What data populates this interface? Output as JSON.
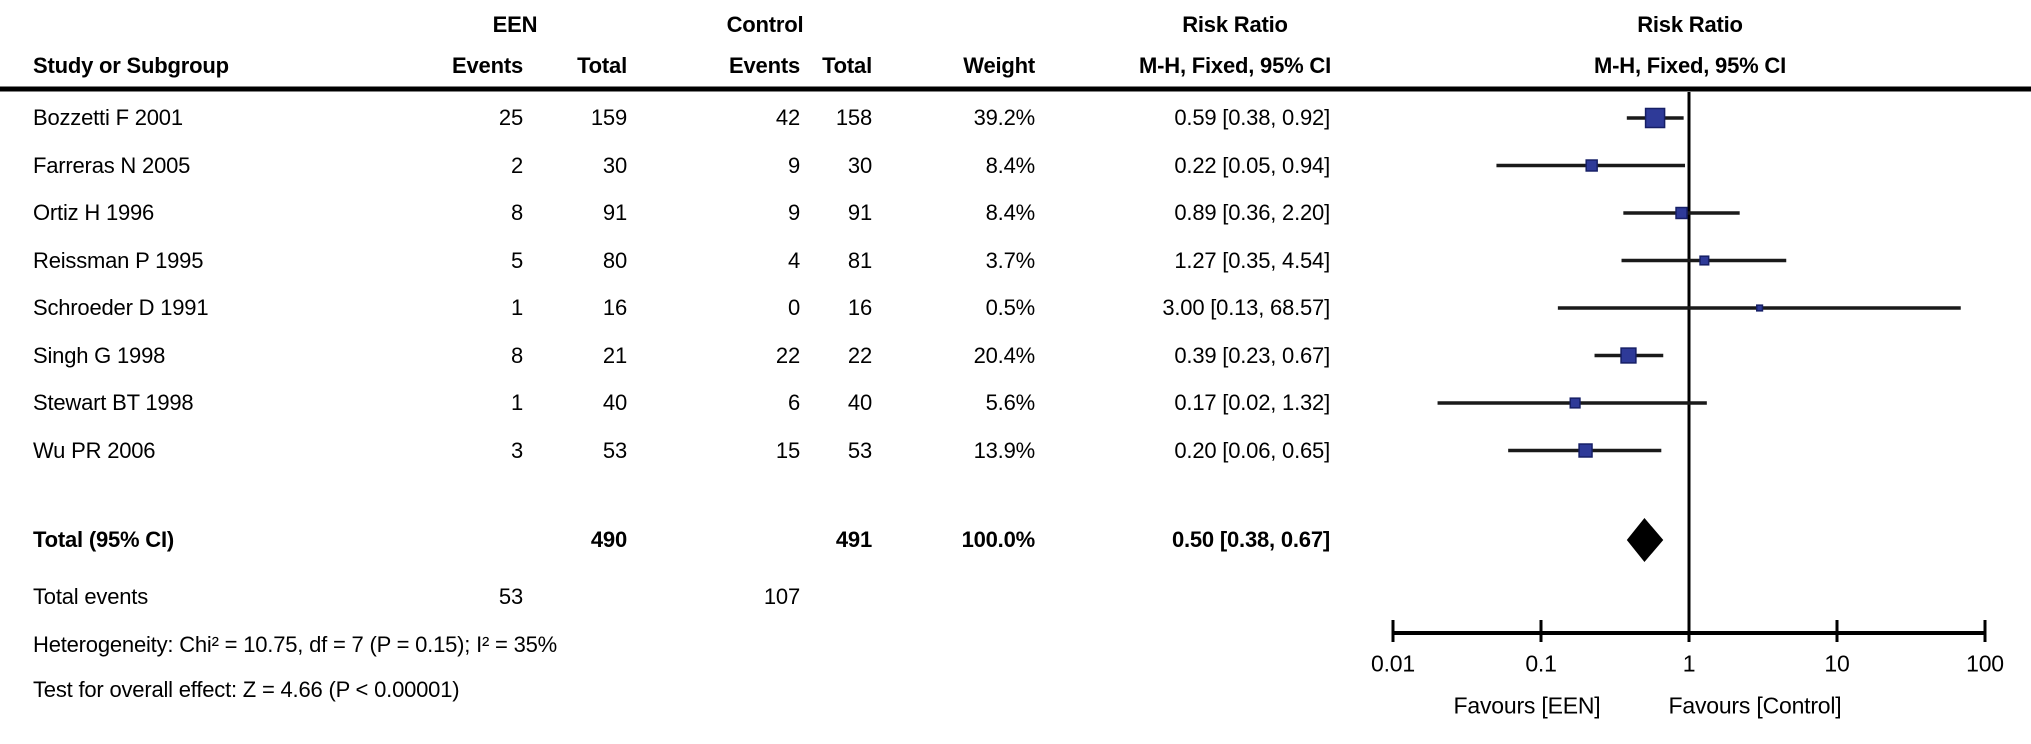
{
  "header": {
    "een_group": "EEN",
    "control_group": "Control",
    "risk_ratio_left": "Risk Ratio",
    "risk_ratio_right": "Risk Ratio",
    "study": "Study or Subgroup",
    "een_events": "Events",
    "een_total": "Total",
    "control_events": "Events",
    "control_total": "Total",
    "weight": "Weight",
    "mh_fixed_left": "M-H, Fixed, 95% CI",
    "mh_fixed_right": "M-H, Fixed, 95% CI"
  },
  "colors": {
    "marker": "#2E3A98",
    "marker_border": "#161F66",
    "line": "#1A1A1A",
    "axis": "#000000",
    "diamond": "#000000"
  },
  "chart_data": {
    "type": "forest",
    "effect_measure": "Risk Ratio",
    "method": "M-H, Fixed, 95% CI",
    "xscale": "log",
    "xticks": [
      0.01,
      0.1,
      1,
      10,
      100
    ],
    "xtick_labels": [
      "0.01",
      "0.1",
      "1",
      "10",
      "100"
    ],
    "xlabel_left": "Favours [EEN]",
    "xlabel_right": "Favours [Control]",
    "studies": [
      {
        "name": "Bozzetti F 2001",
        "een_events": 25,
        "een_total": 159,
        "ctrl_events": 42,
        "ctrl_total": 158,
        "weight": "39.2%",
        "weight_pct": 39.2,
        "ci_text": "0.59 [0.38, 0.92]",
        "rr": 0.59,
        "lo": 0.38,
        "hi": 0.92
      },
      {
        "name": "Farreras N 2005",
        "een_events": 2,
        "een_total": 30,
        "ctrl_events": 9,
        "ctrl_total": 30,
        "weight": "8.4%",
        "weight_pct": 8.4,
        "ci_text": "0.22 [0.05, 0.94]",
        "rr": 0.22,
        "lo": 0.05,
        "hi": 0.94
      },
      {
        "name": "Ortiz H 1996",
        "een_events": 8,
        "een_total": 91,
        "ctrl_events": 9,
        "ctrl_total": 91,
        "weight": "8.4%",
        "weight_pct": 8.4,
        "ci_text": "0.89 [0.36, 2.20]",
        "rr": 0.89,
        "lo": 0.36,
        "hi": 2.2
      },
      {
        "name": "Reissman P 1995",
        "een_events": 5,
        "een_total": 80,
        "ctrl_events": 4,
        "ctrl_total": 81,
        "weight": "3.7%",
        "weight_pct": 3.7,
        "ci_text": "1.27 [0.35, 4.54]",
        "rr": 1.27,
        "lo": 0.35,
        "hi": 4.54
      },
      {
        "name": "Schroeder D 1991",
        "een_events": 1,
        "een_total": 16,
        "ctrl_events": 0,
        "ctrl_total": 16,
        "weight": "0.5%",
        "weight_pct": 0.5,
        "ci_text": "3.00 [0.13, 68.57]",
        "rr": 3.0,
        "lo": 0.13,
        "hi": 68.57
      },
      {
        "name": "Singh G 1998",
        "een_events": 8,
        "een_total": 21,
        "ctrl_events": 22,
        "ctrl_total": 22,
        "weight": "20.4%",
        "weight_pct": 20.4,
        "ci_text": "0.39 [0.23, 0.67]",
        "rr": 0.39,
        "lo": 0.23,
        "hi": 0.67
      },
      {
        "name": "Stewart BT 1998",
        "een_events": 1,
        "een_total": 40,
        "ctrl_events": 6,
        "ctrl_total": 40,
        "weight": "5.6%",
        "weight_pct": 5.6,
        "ci_text": "0.17 [0.02, 1.32]",
        "rr": 0.17,
        "lo": 0.02,
        "hi": 1.32
      },
      {
        "name": "Wu PR 2006",
        "een_events": 3,
        "een_total": 53,
        "ctrl_events": 15,
        "ctrl_total": 53,
        "weight": "13.9%",
        "weight_pct": 13.9,
        "ci_text": "0.20 [0.06, 0.65]",
        "rr": 0.2,
        "lo": 0.06,
        "hi": 0.65
      }
    ],
    "total": {
      "label": "Total (95% CI)",
      "een_total": "490",
      "ctrl_total": "491",
      "weight": "100.0%",
      "ci_text": "0.50 [0.38, 0.67]",
      "rr": 0.5,
      "lo": 0.38,
      "hi": 0.67
    },
    "total_events": {
      "label": "Total events",
      "een": "53",
      "ctrl": "107"
    },
    "heterogeneity": "Heterogeneity: Chi² = 10.75, df = 7 (P = 0.15); I² = 35%",
    "overall_effect": "Test for overall effect: Z = 4.66 (P < 0.00001)"
  }
}
